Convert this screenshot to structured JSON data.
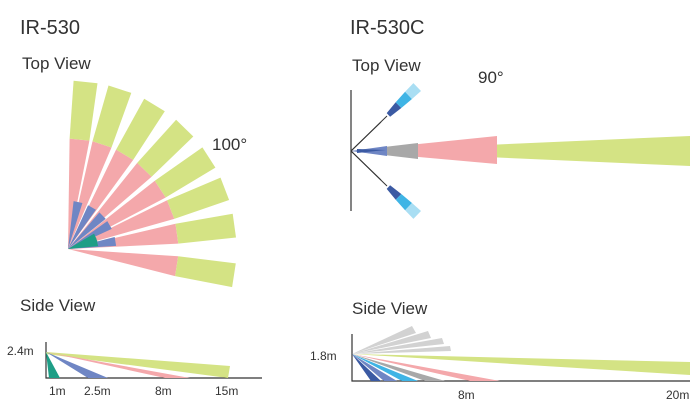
{
  "colors": {
    "green": "#d4e384",
    "pink": "#f4a8ab",
    "blue": "#6f86c4",
    "navy": "#3b5aa3",
    "teal": "#1e9e86",
    "gray": "#a8a8a8",
    "lightgray": "#d2d2d2",
    "cyan": "#3fb4e5",
    "lightcyan": "#a9def3",
    "line": "#333333"
  },
  "left": {
    "title": "IR-530",
    "top_view": {
      "label": "Top View",
      "angle": "100°"
    },
    "side_view": {
      "label": "Side View",
      "height_label": "2.4m",
      "distance_labels": [
        "1m",
        "2.5m",
        "8m",
        "15m"
      ]
    }
  },
  "right": {
    "title": "IR-530C",
    "top_view": {
      "label": "Top View",
      "angle": "90°"
    },
    "side_view": {
      "label": "Side View",
      "height_label": "1.8m",
      "distance_labels": [
        "8m",
        "20m"
      ]
    }
  }
}
